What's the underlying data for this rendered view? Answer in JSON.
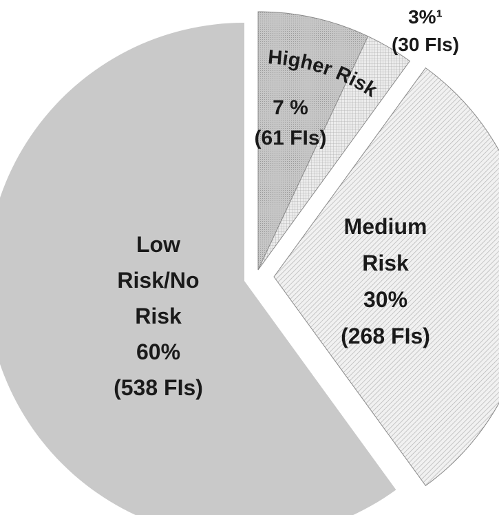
{
  "chart_data": {
    "type": "pie",
    "slices": [
      {
        "value": 7,
        "count": 61,
        "lines": [
          "7 %",
          "(61 FIs)"
        ],
        "fill": "#c4c4c4",
        "pattern": "dense-dots"
      },
      {
        "value": 3,
        "count": 30,
        "lines": [
          "3%¹",
          "(30 FIs)"
        ],
        "fill": "#e2e2e2",
        "pattern": "grid"
      },
      {
        "value": 30,
        "count": 268,
        "lines": [
          "Medium",
          "Risk",
          "30%",
          "(268 FIs)"
        ],
        "fill": "#ebebeb",
        "pattern": "diagonal"
      },
      {
        "value": 60,
        "count": 538,
        "lines": [
          "Low",
          "Risk/No",
          "Risk",
          "60%",
          "(538 FIs)"
        ],
        "fill": "#c9c9c9",
        "pattern": "solid"
      }
    ],
    "group_labels": [
      {
        "text": "Higher Risk",
        "slices": [
          0,
          1
        ]
      }
    ],
    "colors": {
      "edge": "#8a8a8a",
      "text": "#1a1a1a"
    }
  }
}
